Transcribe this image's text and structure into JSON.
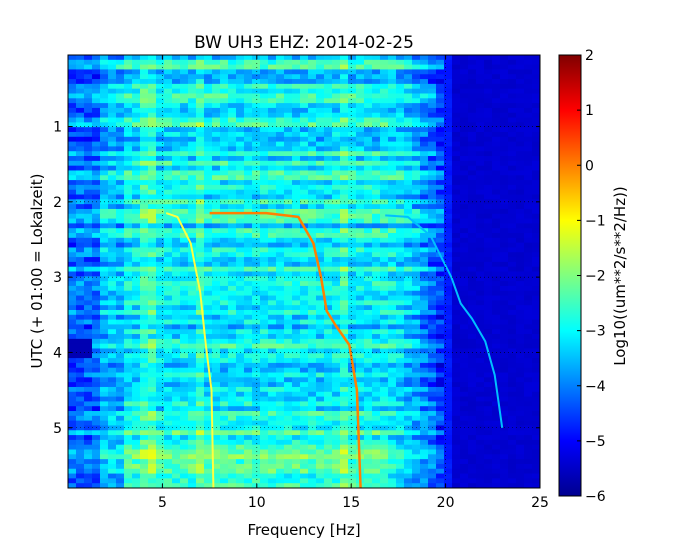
{
  "title": "BW UH3 EHZ: 2014-02-25",
  "chart_data": {
    "type": "heatmap",
    "title": "BW UH3 EHZ: 2014-02-25",
    "xlabel": "Frequency [Hz]",
    "ylabel": "UTC (+ 01:00 = Lokalzeit)",
    "xlim": [
      0,
      25
    ],
    "ylim": [
      5.8,
      0.05
    ],
    "x_ticks": [
      5,
      10,
      15,
      20,
      25
    ],
    "y_ticks": [
      1,
      2,
      3,
      4,
      5
    ],
    "grid": true,
    "colormap": "jet",
    "colorbar": {
      "label": "Log10((um**2/s**2/Hz))",
      "min": -6,
      "max": 2,
      "ticks": [
        2,
        1,
        0,
        -1,
        -2,
        -3,
        -4,
        -5,
        -6
      ]
    },
    "gliding_tone_traces": [
      {
        "name": "",
        "points": [
          [
            5.2,
            2.15
          ],
          [
            5.8,
            2.2
          ],
          [
            6.5,
            2.55
          ],
          [
            7.0,
            3.2
          ],
          [
            7.3,
            3.9
          ],
          [
            7.6,
            4.5
          ],
          [
            7.7,
            5.8
          ]
        ]
      },
      {
        "name": "",
        "points": [
          [
            7.5,
            2.15
          ],
          [
            10.5,
            2.15
          ],
          [
            12.2,
            2.2
          ],
          [
            13.0,
            2.55
          ],
          [
            13.4,
            3.0
          ],
          [
            13.7,
            3.45
          ],
          [
            14.2,
            3.65
          ],
          [
            14.9,
            3.9
          ],
          [
            15.3,
            4.5
          ],
          [
            15.5,
            5.8
          ]
        ]
      },
      {
        "name": "",
        "points": [
          [
            16.8,
            2.18
          ],
          [
            18.0,
            2.2
          ],
          [
            19.2,
            2.45
          ],
          [
            20.3,
            3.0
          ],
          [
            20.8,
            3.35
          ],
          [
            21.4,
            3.55
          ],
          [
            22.1,
            3.85
          ],
          [
            22.6,
            4.3
          ],
          [
            23.0,
            5.0
          ]
        ]
      }
    ]
  },
  "colors": {
    "background": "#ffffff",
    "dark_blue": "#00008f",
    "trace_orange": "#ff7f00",
    "trace_yellow": "#ffff3f"
  }
}
